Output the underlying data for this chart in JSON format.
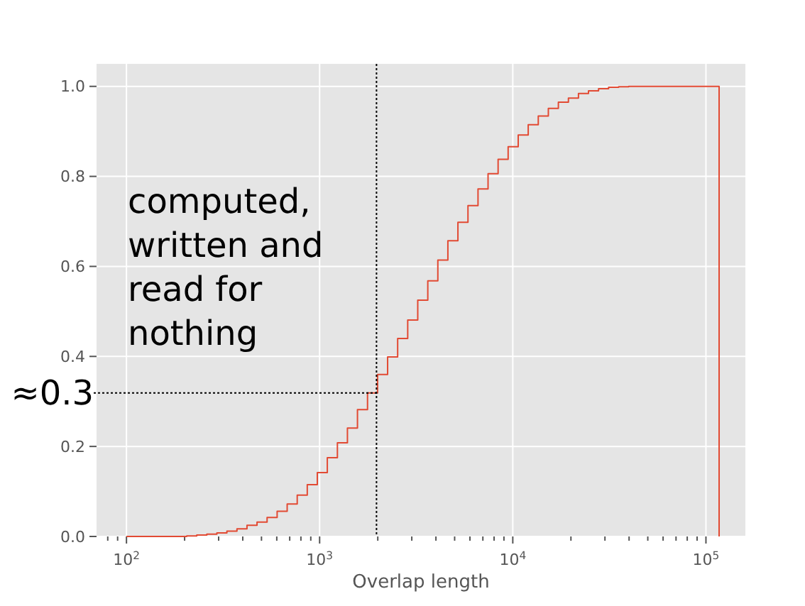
{
  "chart_data": {
    "type": "histogram",
    "xlabel": "Overlap length",
    "log": "x",
    "grid": true,
    "color": "#e24a33",
    "bins": [
      100,
      112.7,
      127,
      143.2,
      161.4,
      182,
      205.1,
      231.2,
      260.6,
      293.8,
      331.1,
      373.3,
      420.7,
      474.2,
      534.6,
      602.6,
      679.2,
      765.6,
      863,
      972.8,
      1096,
      1236,
      1393,
      1570,
      1770,
      1995,
      2249,
      2535,
      2858,
      3221,
      3631,
      4093,
      4613,
      5200,
      5861,
      6607,
      7447,
      8395,
      9462,
      10670,
      12020,
      13550,
      15280,
      17220,
      19410,
      21880,
      24660,
      27800,
      31330,
      35320,
      39810,
      44880,
      50580,
      57020,
      64270,
      72440,
      81660,
      92050,
      103800,
      117000
    ],
    "values": [
      0,
      0,
      0,
      0,
      0,
      0,
      0.001,
      0.003,
      0.005,
      0.008,
      0.012,
      0.017,
      0.025,
      0.032,
      0.042,
      0.056,
      0.072,
      0.092,
      0.115,
      0.142,
      0.175,
      0.208,
      0.241,
      0.282,
      0.319,
      0.36,
      0.399,
      0.44,
      0.481,
      0.525,
      0.568,
      0.614,
      0.657,
      0.698,
      0.735,
      0.772,
      0.806,
      0.838,
      0.866,
      0.892,
      0.915,
      0.934,
      0.951,
      0.965,
      0.974,
      0.984,
      0.99,
      0.995,
      0.998,
      0.999,
      1,
      1,
      1,
      1,
      1,
      1,
      1,
      1,
      1
    ],
    "xlim": [
      70,
      160000
    ],
    "ylim": [
      0,
      1.05
    ],
    "xticks": [
      {
        "value": 80,
        "label": null
      },
      {
        "value": 90,
        "label": null
      },
      {
        "value": 100,
        "label": "10$^{2}$"
      },
      {
        "value": 200,
        "label": null
      },
      {
        "value": 300,
        "label": null
      },
      {
        "value": 400,
        "label": null
      },
      {
        "value": 500,
        "label": null
      },
      {
        "value": 600,
        "label": null
      },
      {
        "value": 700,
        "label": null
      },
      {
        "value": 800,
        "label": null
      },
      {
        "value": 900,
        "label": null
      },
      {
        "value": 1000,
        "label": "10$^{3}$"
      },
      {
        "value": 2000,
        "label": null
      },
      {
        "value": 3000,
        "label": null
      },
      {
        "value": 4000,
        "label": null
      },
      {
        "value": 5000,
        "label": null
      },
      {
        "value": 6000,
        "label": null
      },
      {
        "value": 7000,
        "label": null
      },
      {
        "value": 8000,
        "label": null
      },
      {
        "value": 9000,
        "label": null
      },
      {
        "value": 10000,
        "label": "10$^{4}$"
      },
      {
        "value": 20000,
        "label": null
      },
      {
        "value": 30000,
        "label": null
      },
      {
        "value": 40000,
        "label": null
      },
      {
        "value": 50000,
        "label": null
      },
      {
        "value": 60000,
        "label": null
      },
      {
        "value": 70000,
        "label": null
      },
      {
        "value": 80000,
        "label": null
      },
      {
        "value": 90000,
        "label": null
      },
      {
        "value": 100000,
        "label": "10$^{5}$"
      }
    ],
    "yticks": [
      {
        "value": 0,
        "label": "0.0"
      },
      {
        "value": 0.2,
        "label": "0.2"
      },
      {
        "value": 0.4,
        "label": "0.4"
      },
      {
        "value": 0.6,
        "label": "0.6"
      },
      {
        "value": 0.8,
        "label": "0.8"
      },
      {
        "value": 1,
        "label": "1.0"
      }
    ],
    "ref_lines": [
      {
        "axis": "x",
        "value": 1970,
        "color": "#000000",
        "line_style": "dotted"
      },
      {
        "axis": "y",
        "value": 0.319,
        "label": "≈0.3",
        "color": "#000000",
        "line_style": "dotted"
      }
    ],
    "annotations": [
      "computed, written and read for nothing"
    ]
  }
}
